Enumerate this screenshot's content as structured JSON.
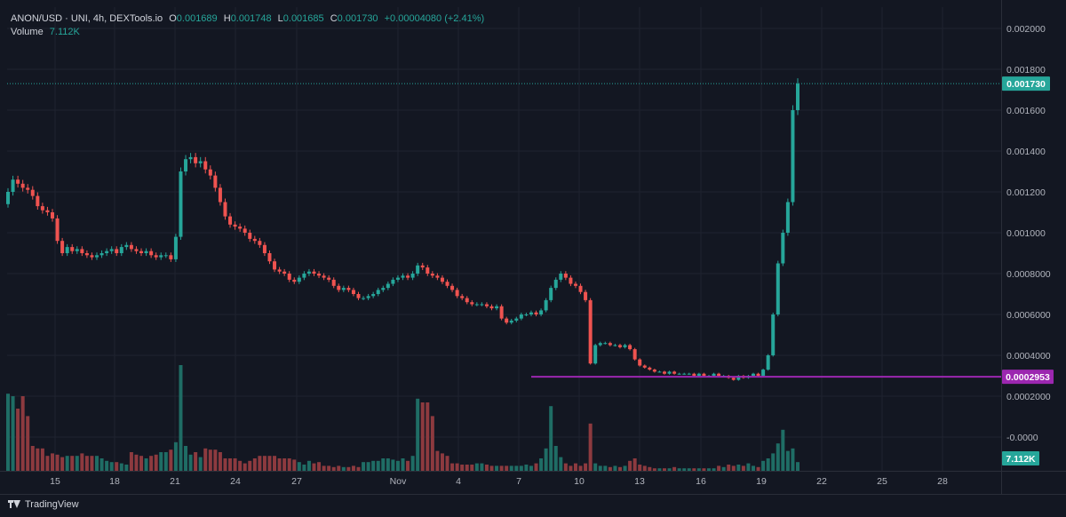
{
  "legend": {
    "symbol": "ANON/USD · UNI, 4h, DEXTools.io",
    "o_label": "O",
    "o_value": "0.001689",
    "h_label": "H",
    "h_value": "0.001748",
    "l_label": "L",
    "l_value": "0.001685",
    "c_label": "C",
    "c_value": "0.001730",
    "change": "+0.00004080 (+2.41%)",
    "volume_label": "Volume",
    "volume_value": "7.112K"
  },
  "footer": {
    "brand": "TradingView"
  },
  "colors": {
    "background": "#131722",
    "grid": "#1f2330",
    "up": "#26a69a",
    "down": "#ef5350",
    "up_volume": "#1f6d65",
    "down_volume": "#8d3a3f",
    "support_line": "#9c27b0",
    "last_price": "#26a69a"
  },
  "chart_data": {
    "type": "candlestick",
    "title": "ANON/USD · UNI, 4h, DEXTools.io",
    "x_ticks": [
      "15",
      "18",
      "21",
      "24",
      "27",
      "Nov",
      "4",
      "7",
      "10",
      "13",
      "16",
      "19",
      "22",
      "25",
      "28"
    ],
    "y_ticks": [
      "0.002000",
      "0.001800",
      "0.001600",
      "0.001400",
      "0.001200",
      "0.001000",
      "0.0008000",
      "0.0006000",
      "0.0004000",
      "0.0002000",
      "-0.0000"
    ],
    "ylim": [
      0,
      0.0021
    ],
    "grid": true,
    "last_price": {
      "value": 0.00173,
      "label": "0.001730"
    },
    "support_level": {
      "value": 0.0002953,
      "label": "0.0002953"
    },
    "volume_badge": "7.112K",
    "price_path_4h_closes": [
      0.0012,
      0.00126,
      0.00124,
      0.00122,
      0.00121,
      0.00118,
      0.00113,
      0.00111,
      0.0011,
      0.00107,
      0.00096,
      0.0009,
      0.00093,
      0.00091,
      0.00092,
      0.0009,
      0.00089,
      0.00088,
      0.00089,
      0.0009,
      0.00091,
      0.00092,
      0.0009,
      0.00093,
      0.00094,
      0.00092,
      0.00091,
      0.0009,
      0.00091,
      0.00089,
      0.00088,
      0.00089,
      0.00089,
      0.00087,
      0.00098,
      0.0013,
      0.00136,
      0.00137,
      0.00134,
      0.00135,
      0.00131,
      0.00128,
      0.00122,
      0.00115,
      0.00108,
      0.00104,
      0.00103,
      0.00102,
      0.001,
      0.00097,
      0.00096,
      0.00094,
      0.0009,
      0.00086,
      0.00082,
      0.00081,
      0.0008,
      0.00077,
      0.00076,
      0.00078,
      0.0008,
      0.00081,
      0.0008,
      0.00079,
      0.00078,
      0.00077,
      0.00074,
      0.00072,
      0.00073,
      0.00072,
      0.0007,
      0.00068,
      0.00068,
      0.00069,
      0.0007,
      0.00072,
      0.00073,
      0.00075,
      0.00077,
      0.00078,
      0.00079,
      0.00078,
      0.0008,
      0.00084,
      0.00083,
      0.0008,
      0.00079,
      0.00078,
      0.00076,
      0.00074,
      0.00072,
      0.00069,
      0.00068,
      0.00066,
      0.00065,
      0.00065,
      0.00065,
      0.00064,
      0.00063,
      0.00064,
      0.00058,
      0.00056,
      0.00057,
      0.00058,
      0.0006,
      0.0006,
      0.00061,
      0.0006,
      0.00062,
      0.00067,
      0.00073,
      0.00077,
      0.0008,
      0.00078,
      0.00075,
      0.00074,
      0.00071,
      0.00067,
      0.00036,
      0.00045,
      0.00046,
      0.00046,
      0.00045,
      0.00045,
      0.00044,
      0.00045,
      0.00043,
      0.00038,
      0.00035,
      0.00034,
      0.00033,
      0.00032,
      0.00032,
      0.00031,
      0.00032,
      0.00031,
      0.00031,
      0.00031,
      0.00031,
      0.0003,
      0.00031,
      0.0003,
      0.0003,
      0.00031,
      0.0003,
      0.0003,
      0.00029,
      0.00028,
      0.0003,
      0.00029,
      0.0003,
      0.00031,
      0.0003,
      0.00033,
      0.0004,
      0.0006,
      0.00085,
      0.001,
      0.00115,
      0.0016,
      0.00173
    ],
    "volume_bars_relative": [
      0.62,
      0.6,
      0.5,
      0.6,
      0.44,
      0.2,
      0.18,
      0.18,
      0.12,
      0.14,
      0.13,
      0.11,
      0.12,
      0.12,
      0.12,
      0.14,
      0.12,
      0.12,
      0.12,
      0.1,
      0.08,
      0.07,
      0.07,
      0.06,
      0.05,
      0.15,
      0.13,
      0.12,
      0.1,
      0.12,
      0.13,
      0.15,
      0.15,
      0.17,
      0.23,
      0.85,
      0.2,
      0.13,
      0.15,
      0.11,
      0.18,
      0.17,
      0.17,
      0.15,
      0.1,
      0.1,
      0.1,
      0.08,
      0.06,
      0.08,
      0.1,
      0.12,
      0.12,
      0.12,
      0.12,
      0.1,
      0.1,
      0.1,
      0.09,
      0.07,
      0.05,
      0.08,
      0.06,
      0.07,
      0.04,
      0.04,
      0.03,
      0.04,
      0.03,
      0.03,
      0.04,
      0.03,
      0.07,
      0.07,
      0.08,
      0.08,
      0.1,
      0.1,
      0.09,
      0.08,
      0.1,
      0.08,
      0.12,
      0.58,
      0.55,
      0.55,
      0.44,
      0.16,
      0.14,
      0.12,
      0.06,
      0.06,
      0.05,
      0.05,
      0.05,
      0.06,
      0.06,
      0.05,
      0.04,
      0.04,
      0.04,
      0.04,
      0.04,
      0.04,
      0.04,
      0.05,
      0.04,
      0.06,
      0.1,
      0.18,
      0.52,
      0.2,
      0.11,
      0.06,
      0.04,
      0.06,
      0.04,
      0.06,
      0.38,
      0.06,
      0.04,
      0.04,
      0.03,
      0.04,
      0.03,
      0.04,
      0.08,
      0.1,
      0.05,
      0.04,
      0.03,
      0.02,
      0.02,
      0.02,
      0.02,
      0.03,
      0.02,
      0.02,
      0.02,
      0.02,
      0.02,
      0.02,
      0.02,
      0.02,
      0.04,
      0.03,
      0.05,
      0.04,
      0.05,
      0.04,
      0.06,
      0.04,
      0.03,
      0.08,
      0.1,
      0.14,
      0.22,
      0.33,
      0.16,
      0.18,
      0.07
    ]
  }
}
